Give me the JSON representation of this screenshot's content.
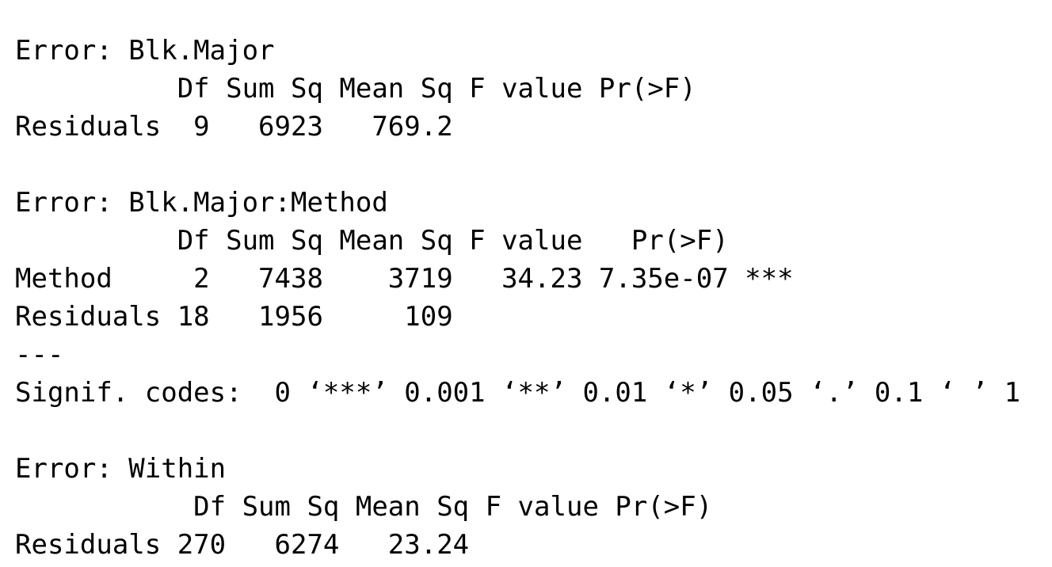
{
  "console": {
    "lines": [
      "Error: Blk.Major",
      "          Df Sum Sq Mean Sq F value Pr(>F)",
      "Residuals  9   6923   769.2",
      "Error: Blk.Major:Method",
      "          Df Sum Sq Mean Sq F value   Pr(>F)",
      "Method     2   7438    3719   34.23 7.35e-07 ***",
      "Residuals 18   1956     109",
      "---",
      "Signif. codes:  0 ‘***’ 0.001 ‘**’ 0.01 ‘*’ 0.05 ‘.’ 0.1 ‘ ’ 1",
      "Error: Within",
      "           Df Sum Sq Mean Sq F value Pr(>F)",
      "Residuals 270   6274   23.24"
    ]
  }
}
